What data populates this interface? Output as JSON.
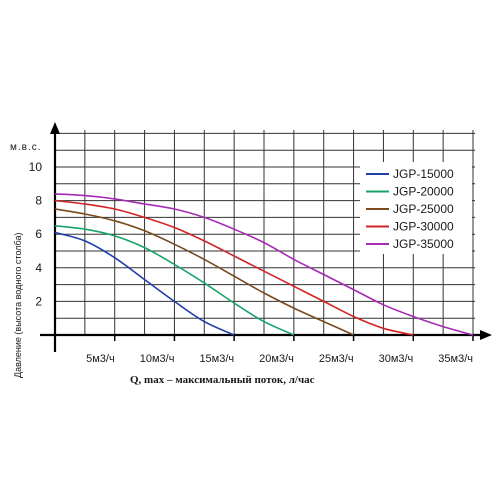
{
  "chart_data": {
    "type": "line",
    "ylabel_top": "м.в.с.",
    "ylabel": "Давление (высота водного столба)",
    "xlabel": "Q, max – максимальный поток, л/час",
    "xlim": [
      0,
      35
    ],
    "ylim": [
      0,
      10
    ],
    "grid": true,
    "legend_position": "top-right",
    "x_ticks": [
      {
        "value": 5,
        "label": "5м3/ч"
      },
      {
        "value": 10,
        "label": "10м3/ч"
      },
      {
        "value": 15,
        "label": "15м3/ч"
      },
      {
        "value": 20,
        "label": "20м3/ч"
      },
      {
        "value": 25,
        "label": "25м3/ч"
      },
      {
        "value": 30,
        "label": "30м3/ч"
      },
      {
        "value": 35,
        "label": "35м3/ч"
      }
    ],
    "y_ticks": [
      {
        "value": 2,
        "label": "2"
      },
      {
        "value": 4,
        "label": "4"
      },
      {
        "value": 6,
        "label": "6"
      },
      {
        "value": 8,
        "label": "8"
      },
      {
        "value": 10,
        "label": "10"
      }
    ],
    "series": [
      {
        "name": "JGP-15000",
        "color": "#1f3fa8",
        "x": [
          0,
          2.5,
          5,
          7.5,
          10,
          12.5,
          15
        ],
        "y": [
          6.1,
          5.6,
          4.6,
          3.3,
          2.0,
          0.8,
          0
        ]
      },
      {
        "name": "JGP-20000",
        "color": "#1aa36a",
        "x": [
          0,
          2.5,
          5,
          7.5,
          10,
          12.5,
          15,
          17.5,
          20
        ],
        "y": [
          6.5,
          6.3,
          5.9,
          5.2,
          4.2,
          3.1,
          1.9,
          0.8,
          0
        ]
      },
      {
        "name": "JGP-25000",
        "color": "#7a4a1e",
        "x": [
          0,
          2.5,
          5,
          7.5,
          10,
          12.5,
          15,
          17.5,
          20,
          22.5,
          25
        ],
        "y": [
          7.5,
          7.2,
          6.8,
          6.2,
          5.4,
          4.5,
          3.5,
          2.5,
          1.6,
          0.8,
          0
        ]
      },
      {
        "name": "JGP-30000",
        "color": "#d12424",
        "x": [
          0,
          2.5,
          5,
          7.5,
          10,
          12.5,
          15,
          17.5,
          20,
          22.5,
          25,
          27.5,
          30
        ],
        "y": [
          8.0,
          7.8,
          7.5,
          7.0,
          6.4,
          5.6,
          4.7,
          3.8,
          2.9,
          2.0,
          1.1,
          0.4,
          0
        ]
      },
      {
        "name": "JGP-35000",
        "color": "#a52bb5",
        "x": [
          0,
          2.5,
          5,
          7.5,
          10,
          12.5,
          15,
          17.5,
          20,
          22.5,
          25,
          27.5,
          30,
          32.5,
          35
        ],
        "y": [
          8.4,
          8.3,
          8.1,
          7.8,
          7.5,
          7.0,
          6.3,
          5.5,
          4.5,
          3.6,
          2.7,
          1.8,
          1.1,
          0.5,
          0
        ]
      }
    ]
  }
}
